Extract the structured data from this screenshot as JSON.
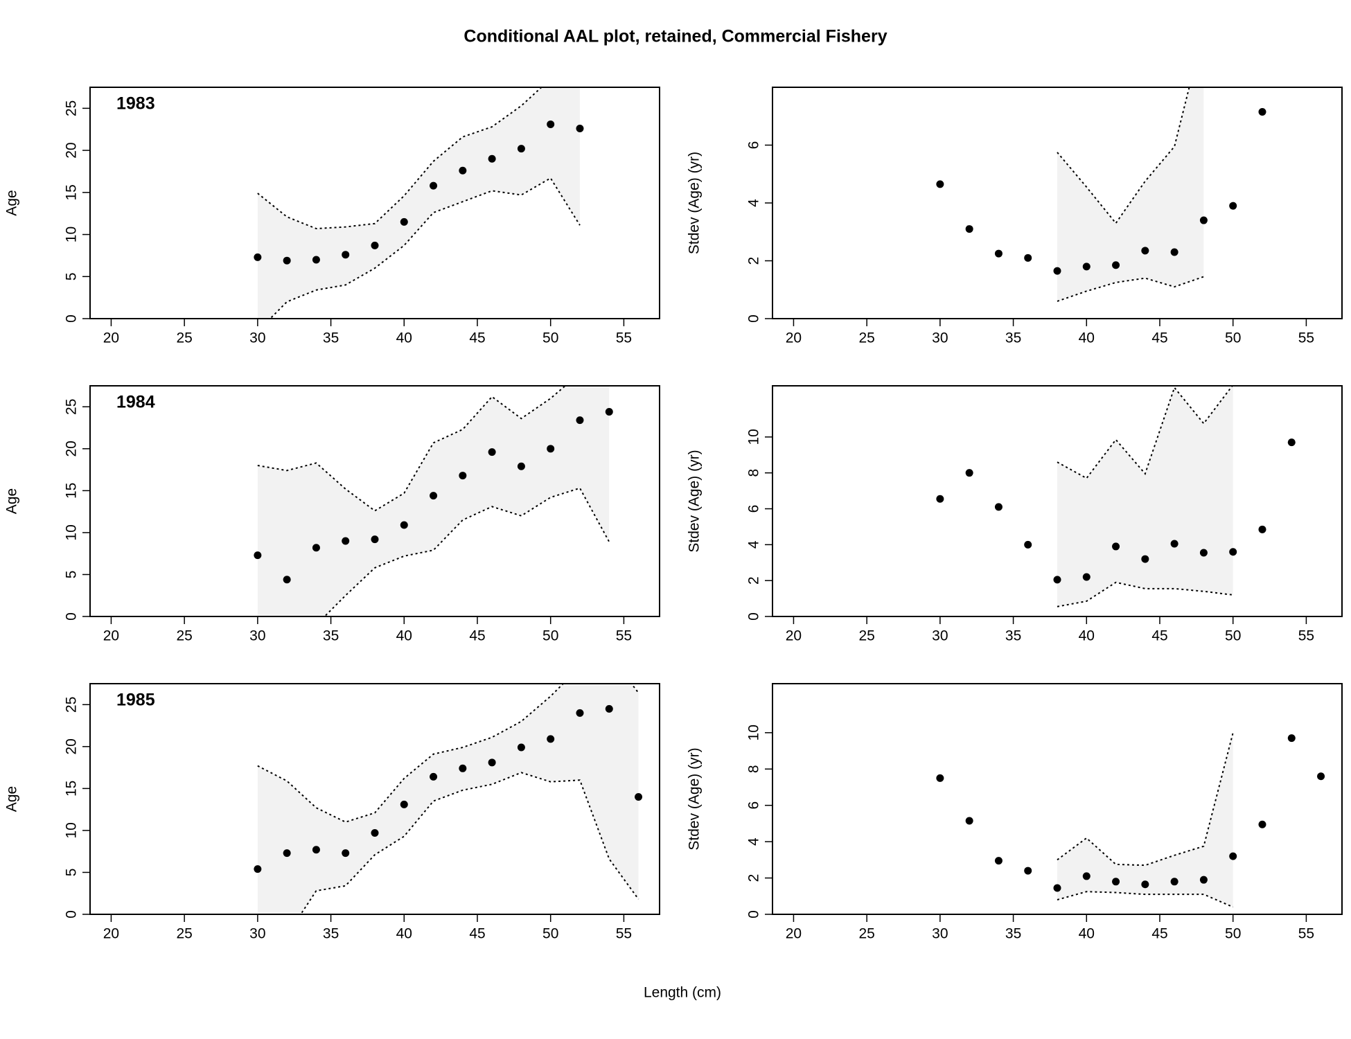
{
  "title": "Conditional AAL plot, retained, Commercial Fishery",
  "xlabel": "Length (cm)",
  "chart_data": [
    {
      "type": "scatter",
      "label": "1983",
      "ylabel": "Age",
      "xlim": [
        18.56,
        57.44
      ],
      "xticks": [
        20,
        25,
        30,
        35,
        40,
        45,
        50,
        55
      ],
      "ylim": [
        0,
        27.5
      ],
      "yticks": [
        0,
        5,
        10,
        15,
        20,
        25
      ],
      "x": [
        30,
        32,
        34,
        36,
        38,
        40,
        42,
        44,
        46,
        48,
        50,
        52
      ],
      "values": [
        7.3,
        6.9,
        7.0,
        7.6,
        8.7,
        11.5,
        15.8,
        17.6,
        19.0,
        20.2,
        23.1,
        22.6
      ],
      "interval": {
        "x": [
          30,
          32,
          34,
          36,
          38,
          40,
          42,
          44,
          46,
          48,
          50,
          52
        ],
        "upper": [
          14.9,
          12.1,
          10.7,
          10.9,
          11.3,
          14.6,
          18.7,
          21.6,
          22.8,
          25.3,
          28.5,
          31
        ],
        "lower": [
          -1.5,
          2.0,
          3.4,
          4.0,
          6.0,
          8.7,
          12.6,
          13.9,
          15.2,
          14.7,
          16.7,
          11.1
        ]
      }
    },
    {
      "type": "scatter",
      "ylabel": "Stdev (Age) (yr)",
      "xlim": [
        18.56,
        57.44
      ],
      "xticks": [
        20,
        25,
        30,
        35,
        40,
        45,
        50,
        55
      ],
      "ylim": [
        0,
        8.0
      ],
      "yticks": [
        0,
        2,
        4,
        6
      ],
      "x": [
        30,
        32,
        34,
        36,
        38,
        40,
        42,
        44,
        46,
        48,
        50,
        52
      ],
      "values": [
        4.65,
        3.1,
        2.25,
        2.1,
        1.65,
        1.8,
        1.85,
        2.35,
        2.3,
        3.4,
        3.9,
        7.15
      ],
      "interval": {
        "x": [
          38,
          40,
          42,
          44,
          46,
          48
        ],
        "upper": [
          5.75,
          4.55,
          3.3,
          4.75,
          5.95,
          10
        ],
        "lower": [
          0.6,
          0.95,
          1.25,
          1.4,
          1.1,
          1.45
        ]
      }
    },
    {
      "type": "scatter",
      "label": "1984",
      "ylabel": "Age",
      "xlim": [
        18.56,
        57.44
      ],
      "xticks": [
        20,
        25,
        30,
        35,
        40,
        45,
        50,
        55
      ],
      "ylim": [
        0,
        27.5
      ],
      "yticks": [
        0,
        5,
        10,
        15,
        20,
        25
      ],
      "x": [
        30,
        32,
        34,
        36,
        38,
        40,
        42,
        44,
        46,
        48,
        50,
        52,
        54
      ],
      "values": [
        7.3,
        4.4,
        8.2,
        9.0,
        9.2,
        10.9,
        14.4,
        16.8,
        19.6,
        17.9,
        20.0,
        23.4,
        24.4
      ],
      "interval": {
        "x": [
          30,
          32,
          34,
          36,
          38,
          40,
          42,
          44,
          46,
          48,
          50,
          52,
          54
        ],
        "upper": [
          18.0,
          17.4,
          18.3,
          15.2,
          12.6,
          14.7,
          20.7,
          22.3,
          26.2,
          23.6,
          26.0,
          29,
          33
        ],
        "lower": [
          -4,
          -2,
          -1,
          2.5,
          5.8,
          7.2,
          7.9,
          11.5,
          13.1,
          12.0,
          14.2,
          15.3,
          8.9
        ]
      }
    },
    {
      "type": "scatter",
      "ylabel": "Stdev (Age) (yr)",
      "xlim": [
        18.56,
        57.44
      ],
      "xticks": [
        20,
        25,
        30,
        35,
        40,
        45,
        50,
        55
      ],
      "ylim": [
        0,
        12.85
      ],
      "yticks": [
        0,
        2,
        4,
        6,
        8,
        10
      ],
      "x": [
        30,
        32,
        34,
        36,
        38,
        40,
        42,
        44,
        46,
        48,
        50,
        52,
        54
      ],
      "values": [
        6.55,
        8.0,
        6.1,
        4.0,
        2.05,
        2.2,
        3.9,
        3.2,
        4.05,
        3.55,
        3.6,
        4.85,
        9.7
      ],
      "interval": {
        "x": [
          38,
          40,
          42,
          44,
          46,
          48,
          50
        ],
        "upper": [
          8.6,
          7.7,
          9.85,
          7.95,
          12.75,
          10.75,
          12.9
        ],
        "lower": [
          0.55,
          0.85,
          1.9,
          1.55,
          1.55,
          1.4,
          1.2
        ]
      }
    },
    {
      "type": "scatter",
      "label": "1985",
      "ylabel": "Age",
      "xlim": [
        18.56,
        57.44
      ],
      "xticks": [
        20,
        25,
        30,
        35,
        40,
        45,
        50,
        55
      ],
      "ylim": [
        0,
        27.5
      ],
      "yticks": [
        0,
        5,
        10,
        15,
        20,
        25
      ],
      "x": [
        30,
        32,
        34,
        36,
        38,
        40,
        42,
        44,
        46,
        48,
        50,
        52,
        54,
        56
      ],
      "values": [
        5.4,
        7.3,
        7.7,
        7.3,
        9.7,
        13.1,
        16.4,
        17.4,
        18.1,
        19.9,
        20.9,
        24.0,
        24.5,
        14.0
      ],
      "interval": {
        "x": [
          30,
          32,
          34,
          36,
          38,
          40,
          42,
          44,
          46,
          48,
          50,
          52,
          54,
          56
        ],
        "upper": [
          17.7,
          15.9,
          12.7,
          11.0,
          12.1,
          16.2,
          19.1,
          19.9,
          21.1,
          23.0,
          26.0,
          29.5,
          31,
          26.4
        ],
        "lower": [
          -5,
          -2.5,
          2.8,
          3.4,
          7.1,
          9.3,
          13.5,
          14.8,
          15.5,
          16.9,
          15.8,
          16.0,
          6.6,
          1.8
        ]
      }
    },
    {
      "type": "scatter",
      "ylabel": "Stdev (Age) (yr)",
      "xlim": [
        18.56,
        57.44
      ],
      "xticks": [
        20,
        25,
        30,
        35,
        40,
        45,
        50,
        55
      ],
      "ylim": [
        0,
        12.7
      ],
      "yticks": [
        0,
        2,
        4,
        6,
        8,
        10
      ],
      "x": [
        30,
        32,
        34,
        36,
        38,
        40,
        42,
        44,
        46,
        48,
        50,
        52,
        54,
        56
      ],
      "values": [
        7.5,
        5.15,
        2.95,
        2.4,
        1.45,
        2.1,
        1.8,
        1.65,
        1.8,
        1.9,
        3.2,
        4.95,
        9.7,
        7.6
      ],
      "interval": {
        "x": [
          38,
          40,
          42,
          44,
          46,
          48,
          50
        ],
        "upper": [
          3.0,
          4.2,
          2.75,
          2.7,
          3.25,
          3.75,
          10.0
        ],
        "lower": [
          0.8,
          1.25,
          1.2,
          1.1,
          1.1,
          1.1,
          0.4
        ]
      }
    }
  ]
}
